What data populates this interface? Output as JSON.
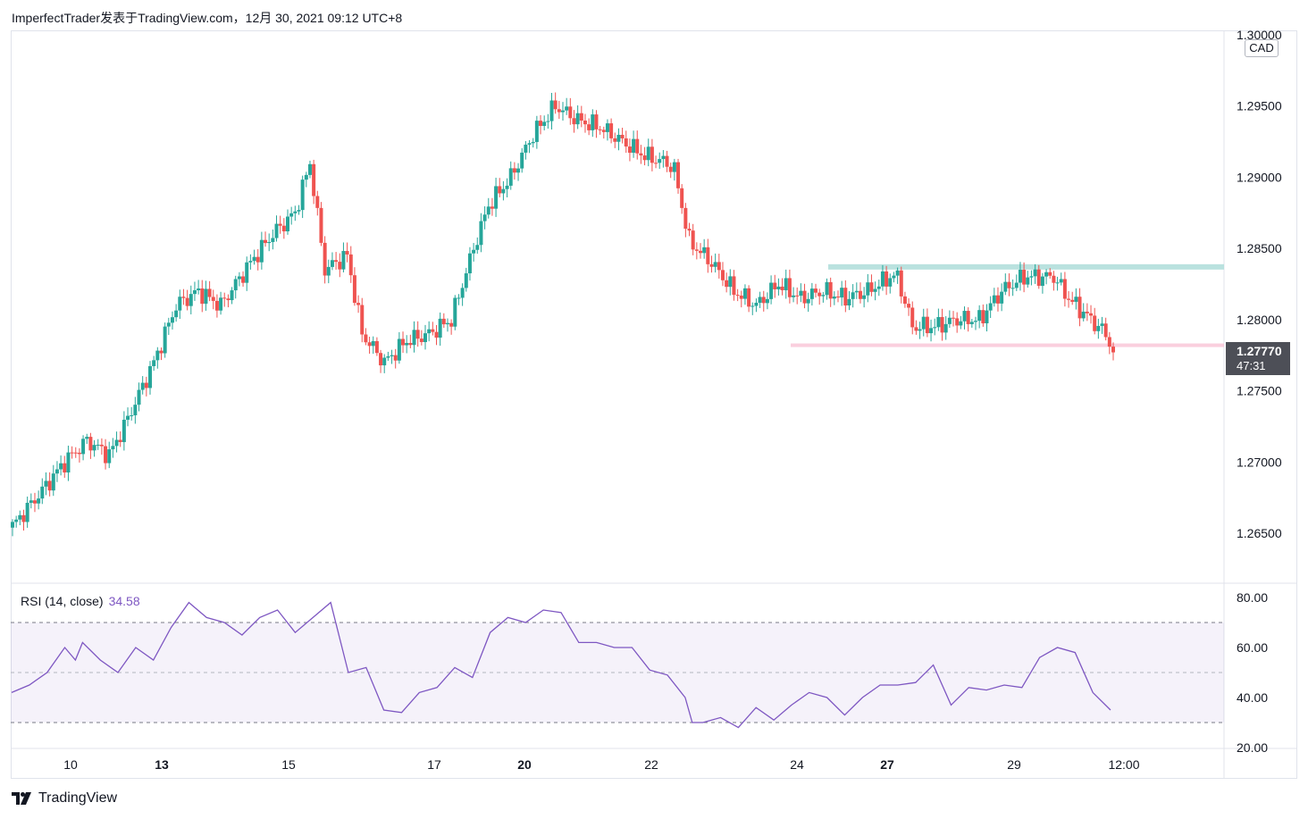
{
  "header": {
    "title": "ImperfectTrader发表于TradingView.com，12月 30, 2021 09:12 UTC+8"
  },
  "currency": "CAD",
  "last_price": {
    "value": "1.27770",
    "countdown": "47:31"
  },
  "rsi": {
    "label": "RSI (14, close)",
    "value": "34.58"
  },
  "footer": {
    "brand": "TradingView"
  },
  "colors": {
    "up": "#26a69a",
    "down": "#ef5350",
    "rsi_line": "#7e57c2",
    "rsi_band": "#7e57c2",
    "resistance": "#b2dfdb",
    "support": "#f8bbd0"
  },
  "chart_data": [
    {
      "type": "candlestick",
      "symbol_currency": "CAD",
      "y_ticks": [
        "1.30000",
        "1.29500",
        "1.29000",
        "1.28500",
        "1.28000",
        "1.27500",
        "1.27000",
        "1.26500"
      ],
      "ylim": [
        1.2615,
        1.3003
      ],
      "x_ticks": [
        {
          "label": "10",
          "bold": false
        },
        {
          "label": "13",
          "bold": true
        },
        {
          "label": "15",
          "bold": false
        },
        {
          "label": "17",
          "bold": false
        },
        {
          "label": "20",
          "bold": true
        },
        {
          "label": "22",
          "bold": false
        },
        {
          "label": "24",
          "bold": false
        },
        {
          "label": "27",
          "bold": true
        },
        {
          "label": "29",
          "bold": false
        },
        {
          "label": "12:00",
          "bold": false
        }
      ],
      "horizontal_lines": [
        {
          "name": "resistance",
          "y": 1.2837
        },
        {
          "name": "support",
          "y": 1.2782
        }
      ],
      "anchors": [
        [
          0,
          1.2655
        ],
        [
          8,
          1.268
        ],
        [
          14,
          1.27
        ],
        [
          20,
          1.2715
        ],
        [
          26,
          1.2705
        ],
        [
          30,
          1.2725
        ],
        [
          38,
          1.277
        ],
        [
          44,
          1.281
        ],
        [
          50,
          1.282
        ],
        [
          56,
          1.281
        ],
        [
          64,
          1.284
        ],
        [
          70,
          1.286
        ],
        [
          76,
          1.2875
        ],
        [
          80,
          1.291
        ],
        [
          84,
          1.2835
        ],
        [
          90,
          1.2845
        ],
        [
          94,
          1.279
        ],
        [
          100,
          1.277
        ],
        [
          106,
          1.2785
        ],
        [
          112,
          1.279
        ],
        [
          118,
          1.28
        ],
        [
          124,
          1.285
        ],
        [
          128,
          1.288
        ],
        [
          134,
          1.29
        ],
        [
          140,
          1.293
        ],
        [
          146,
          1.295
        ],
        [
          152,
          1.294
        ],
        [
          158,
          1.2935
        ],
        [
          164,
          1.2925
        ],
        [
          170,
          1.2915
        ],
        [
          176,
          1.291
        ],
        [
          178,
          1.2905
        ],
        [
          182,
          1.2855
        ],
        [
          188,
          1.284
        ],
        [
          194,
          1.282
        ],
        [
          200,
          1.281
        ],
        [
          206,
          1.2825
        ],
        [
          212,
          1.2815
        ],
        [
          218,
          1.282
        ],
        [
          224,
          1.2815
        ],
        [
          230,
          1.282
        ],
        [
          236,
          1.283
        ],
        [
          238,
          1.283
        ],
        [
          242,
          1.2795
        ],
        [
          248,
          1.2795
        ],
        [
          254,
          1.28
        ],
        [
          260,
          1.28
        ],
        [
          266,
          1.282
        ],
        [
          272,
          1.283
        ],
        [
          280,
          1.283
        ],
        [
          284,
          1.2815
        ],
        [
          290,
          1.28
        ],
        [
          294,
          1.279
        ],
        [
          296,
          1.2777
        ]
      ]
    },
    {
      "type": "line",
      "name": "RSI (14, close)",
      "y_ticks": [
        "80.00",
        "60.00",
        "40.00",
        "20.00"
      ],
      "ylim": [
        20,
        80
      ],
      "bands": [
        70,
        50,
        30
      ],
      "last_value": 34.58,
      "points": [
        [
          0,
          42
        ],
        [
          5,
          45
        ],
        [
          10,
          50
        ],
        [
          15,
          60
        ],
        [
          18,
          55
        ],
        [
          20,
          62
        ],
        [
          25,
          55
        ],
        [
          30,
          50
        ],
        [
          35,
          60
        ],
        [
          40,
          55
        ],
        [
          45,
          68
        ],
        [
          50,
          78
        ],
        [
          55,
          72
        ],
        [
          60,
          70
        ],
        [
          65,
          65
        ],
        [
          70,
          72
        ],
        [
          75,
          75
        ],
        [
          80,
          66
        ],
        [
          85,
          72
        ],
        [
          90,
          78
        ],
        [
          95,
          50
        ],
        [
          100,
          52
        ],
        [
          105,
          35
        ],
        [
          110,
          34
        ],
        [
          115,
          42
        ],
        [
          120,
          44
        ],
        [
          125,
          52
        ],
        [
          130,
          48
        ],
        [
          135,
          66
        ],
        [
          140,
          72
        ],
        [
          145,
          70
        ],
        [
          150,
          75
        ],
        [
          155,
          74
        ],
        [
          160,
          62
        ],
        [
          165,
          62
        ],
        [
          170,
          60
        ],
        [
          175,
          60
        ],
        [
          180,
          51
        ],
        [
          185,
          49
        ],
        [
          190,
          40
        ],
        [
          192,
          30
        ],
        [
          195,
          30
        ],
        [
          200,
          32
        ],
        [
          205,
          28
        ],
        [
          210,
          36
        ],
        [
          215,
          31
        ],
        [
          220,
          37
        ],
        [
          225,
          42
        ],
        [
          230,
          40
        ],
        [
          235,
          33
        ],
        [
          240,
          40
        ],
        [
          245,
          45
        ],
        [
          250,
          45
        ],
        [
          255,
          46
        ],
        [
          260,
          53
        ],
        [
          265,
          37
        ],
        [
          270,
          44
        ],
        [
          275,
          43
        ],
        [
          280,
          45
        ],
        [
          285,
          44
        ],
        [
          290,
          56
        ],
        [
          295,
          60
        ],
        [
          300,
          58
        ],
        [
          305,
          42
        ],
        [
          310,
          35
        ]
      ]
    }
  ]
}
